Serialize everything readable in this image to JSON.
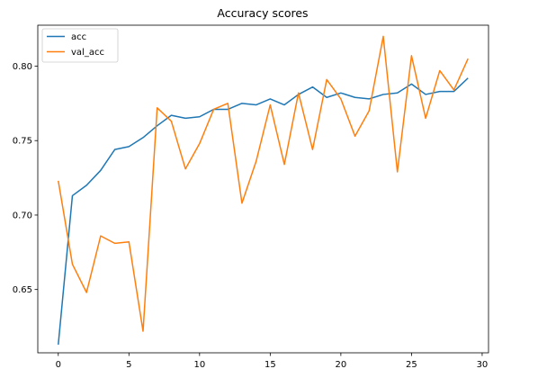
{
  "chart_data": {
    "type": "line",
    "title": "Accuracy scores",
    "xlabel": "",
    "ylabel": "",
    "xlim": [
      -1.45,
      30.45
    ],
    "ylim": [
      0.6075,
      0.8275
    ],
    "x_ticks": [
      0,
      5,
      10,
      15,
      20,
      25,
      30
    ],
    "x_tick_labels": [
      "0",
      "5",
      "10",
      "15",
      "20",
      "25",
      "30"
    ],
    "y_ticks": [
      0.65,
      0.7,
      0.75,
      0.8
    ],
    "y_tick_labels": [
      "0.65",
      "0.70",
      "0.75",
      "0.80"
    ],
    "grid": false,
    "legend_position": "upper-left",
    "x": [
      0,
      1,
      2,
      3,
      4,
      5,
      6,
      7,
      8,
      9,
      10,
      11,
      12,
      13,
      14,
      15,
      16,
      17,
      18,
      19,
      20,
      21,
      22,
      23,
      24,
      25,
      26,
      27,
      28,
      29
    ],
    "series": [
      {
        "name": "acc",
        "color": "#1f77b4",
        "values": [
          0.613,
          0.713,
          0.72,
          0.73,
          0.744,
          0.746,
          0.752,
          0.76,
          0.767,
          0.765,
          0.766,
          0.771,
          0.771,
          0.775,
          0.774,
          0.778,
          0.774,
          0.781,
          0.786,
          0.779,
          0.782,
          0.779,
          0.778,
          0.781,
          0.782,
          0.788,
          0.781,
          0.783,
          0.783,
          0.792
        ]
      },
      {
        "name": "val_acc",
        "color": "#ff7f0e",
        "values": [
          0.723,
          0.667,
          0.648,
          0.686,
          0.681,
          0.682,
          0.622,
          0.772,
          0.763,
          0.731,
          0.748,
          0.771,
          0.775,
          0.708,
          0.736,
          0.774,
          0.734,
          0.782,
          0.744,
          0.791,
          0.778,
          0.753,
          0.77,
          0.82,
          0.729,
          0.807,
          0.765,
          0.797,
          0.784,
          0.805
        ]
      }
    ]
  }
}
